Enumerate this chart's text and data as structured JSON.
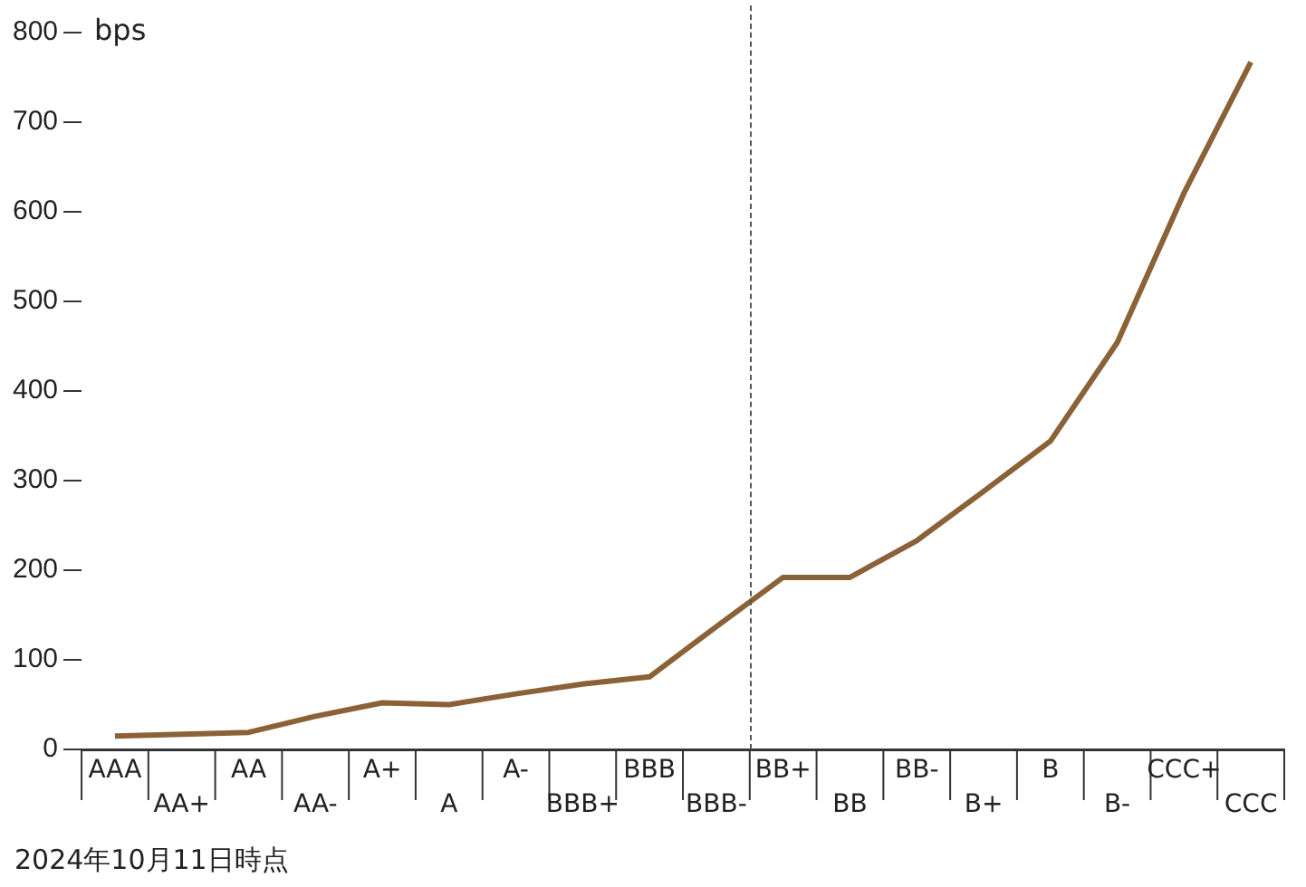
{
  "chart_data": {
    "type": "line",
    "ylabel": "bps",
    "categories": [
      "AAA",
      "AA+",
      "AA",
      "AA-",
      "A+",
      "A",
      "A-",
      "BBB+",
      "BBB",
      "BBB-",
      "BB+",
      "BB",
      "BB-",
      "B+",
      "B",
      "B-",
      "CCC+",
      "CCC"
    ],
    "values": [
      15,
      17,
      19,
      37,
      52,
      50,
      62,
      73,
      81,
      137,
      192,
      192,
      233,
      288,
      344,
      454,
      621,
      767
    ],
    "color": "#8b6238",
    "ylim": [
      0,
      800
    ],
    "yticks": [
      0,
      100,
      200,
      300,
      400,
      500,
      600,
      700,
      800
    ],
    "grid": false,
    "legend": false,
    "marker": "none",
    "line_style": "solid",
    "annotations": [
      "2024年10月11日時点"
    ]
  }
}
